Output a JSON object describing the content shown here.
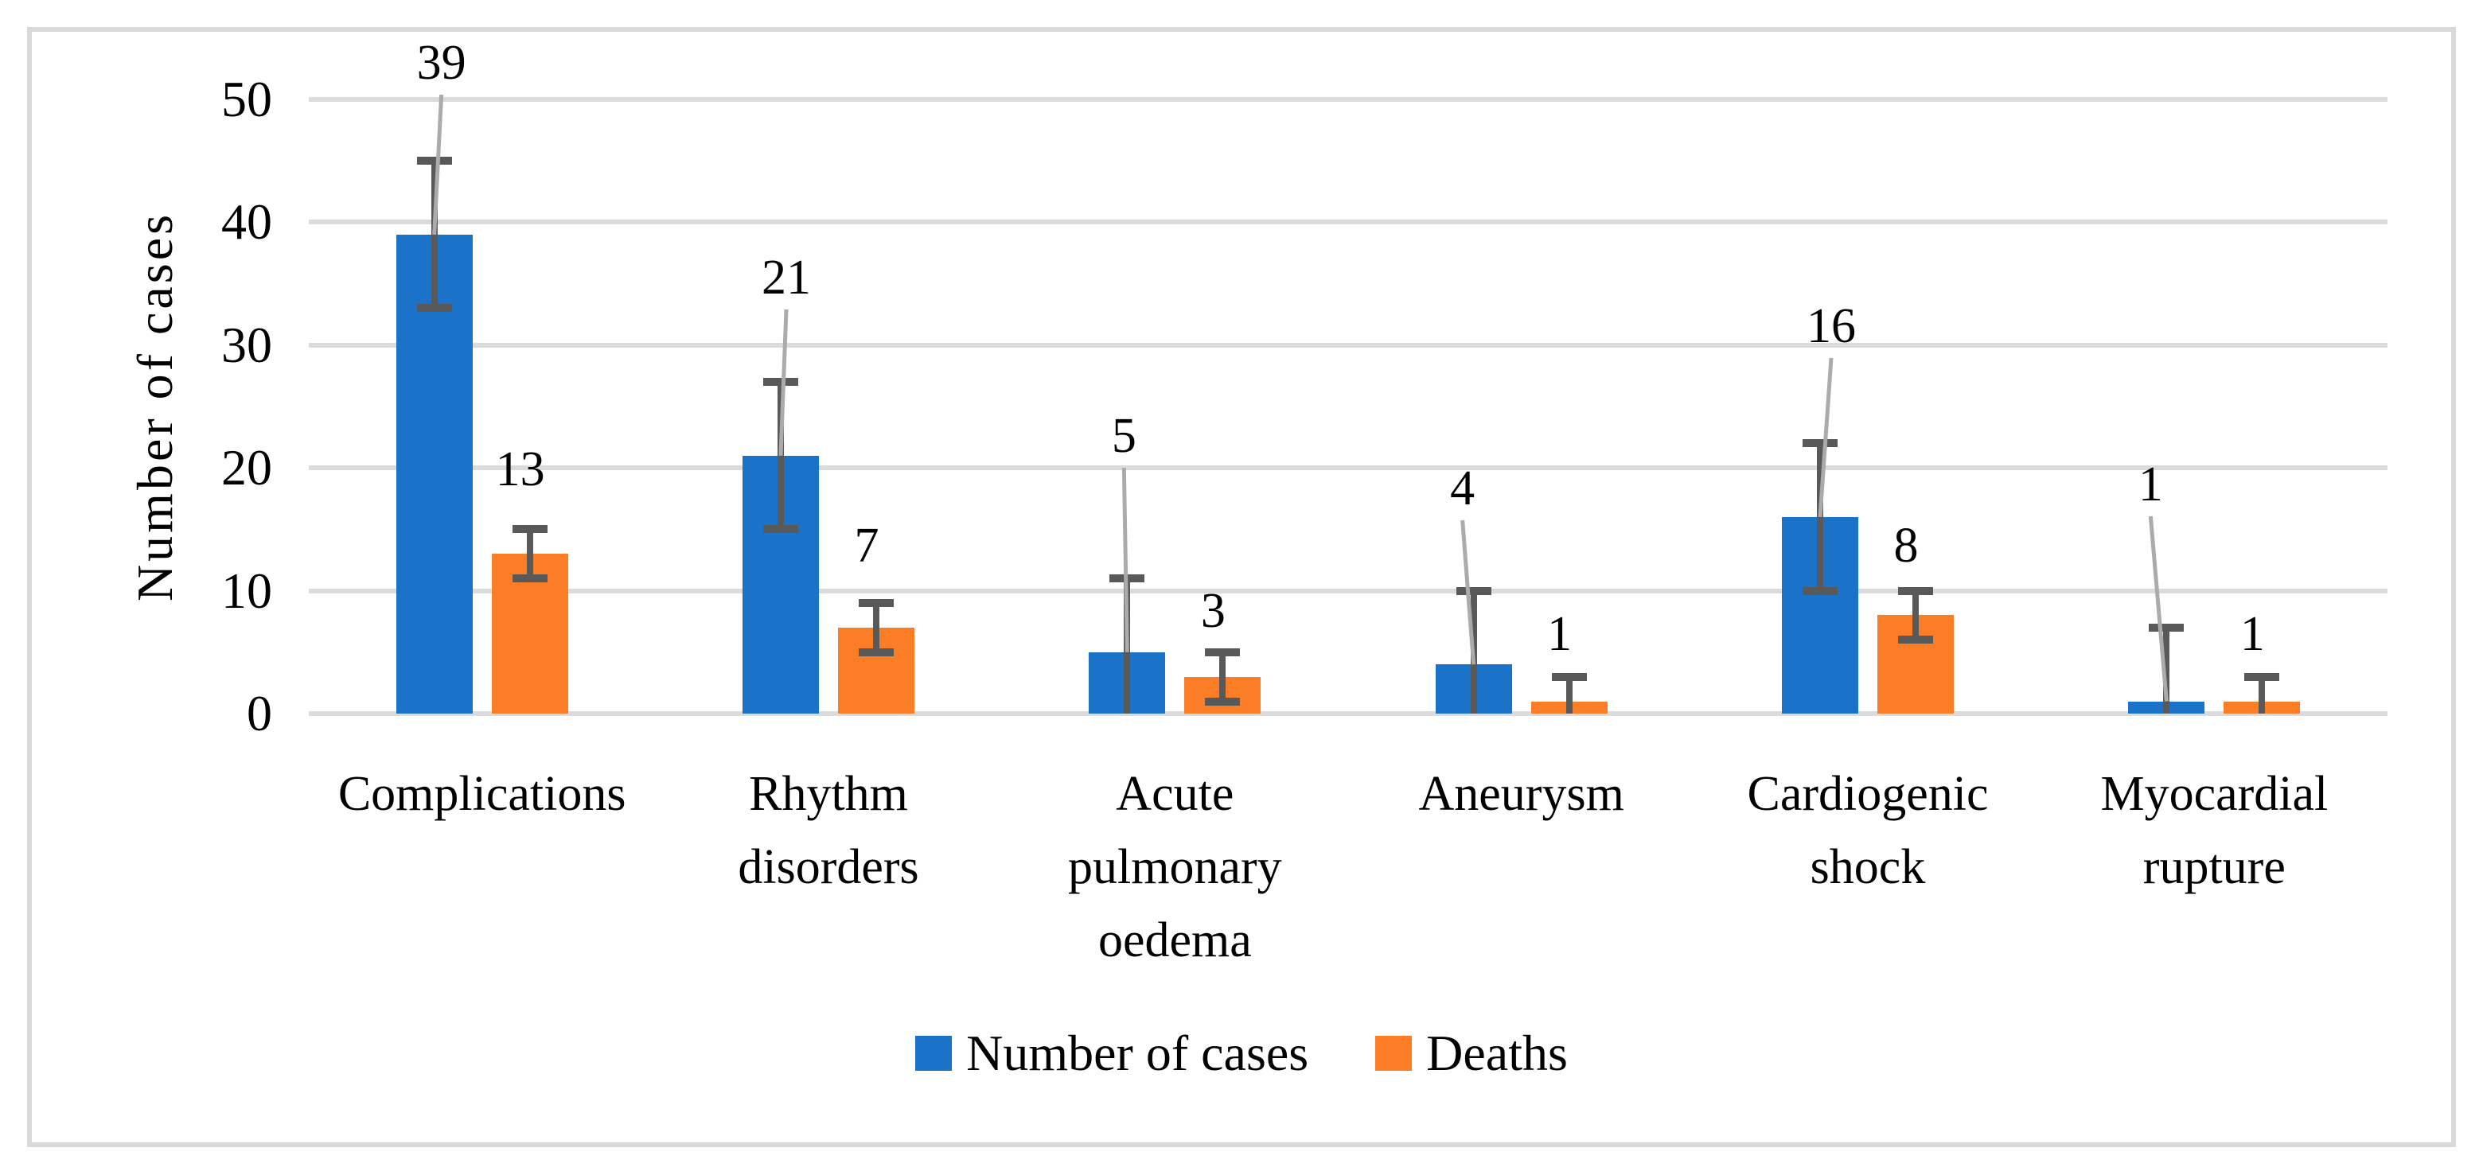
{
  "figure": {
    "background_color": "#FFFFFF",
    "frame_border_color": "#D9D9D9"
  },
  "chart_data": {
    "type": "bar",
    "title": "",
    "xlabel": "",
    "ylabel": "Number of cases",
    "ylim": [
      0,
      50
    ],
    "yticks": [
      0,
      10,
      20,
      30,
      40,
      50
    ],
    "grid": true,
    "gridline_color": "#DBDBDB",
    "error_bar_color": "#595959",
    "leader_line_color": "#ABABAB",
    "legend_position": "bottom-center",
    "categories": [
      "Complications",
      "Rhythm\ndisorders",
      "Acute\npulmonary\noedema",
      "Aneurysm",
      "Cardiogenic\nshock",
      "Myocardial\nrupture"
    ],
    "series": [
      {
        "name": "Number of cases",
        "color": "#1B73C9",
        "values": [
          39,
          21,
          5,
          4,
          16,
          1
        ],
        "errors": [
          6,
          6,
          6,
          6,
          6,
          6
        ],
        "labels": [
          {
            "text": "39",
            "dx": 9,
            "bottom": 111,
            "leader": true
          },
          {
            "text": "21",
            "dx": 7,
            "bottom": 381,
            "leader": true
          },
          {
            "text": "5",
            "dx": -4,
            "bottom": 580,
            "leader": true
          },
          {
            "text": "4",
            "dx": -14,
            "bottom": 646,
            "leader": true
          },
          {
            "text": "16",
            "dx": 14,
            "bottom": 442,
            "leader": true
          },
          {
            "text": "1",
            "dx": -20,
            "bottom": 641,
            "leader": true
          }
        ]
      },
      {
        "name": "Deaths",
        "color": "#FB7D26",
        "values": [
          13,
          7,
          3,
          1,
          8,
          1
        ],
        "errors": [
          2,
          2,
          2,
          2,
          2,
          2
        ],
        "labels": [
          {
            "text": "13",
            "dx": -12,
            "bottom": 622,
            "leader": false
          },
          {
            "text": "7",
            "dx": -12,
            "bottom": 718,
            "leader": false
          },
          {
            "text": "3",
            "dx": -12,
            "bottom": 800,
            "leader": false
          },
          {
            "text": "1",
            "dx": -12,
            "bottom": 829,
            "leader": false
          },
          {
            "text": "8",
            "dx": -12,
            "bottom": 718,
            "leader": false
          },
          {
            "text": "1",
            "dx": -12,
            "bottom": 829,
            "leader": false
          }
        ]
      }
    ]
  }
}
